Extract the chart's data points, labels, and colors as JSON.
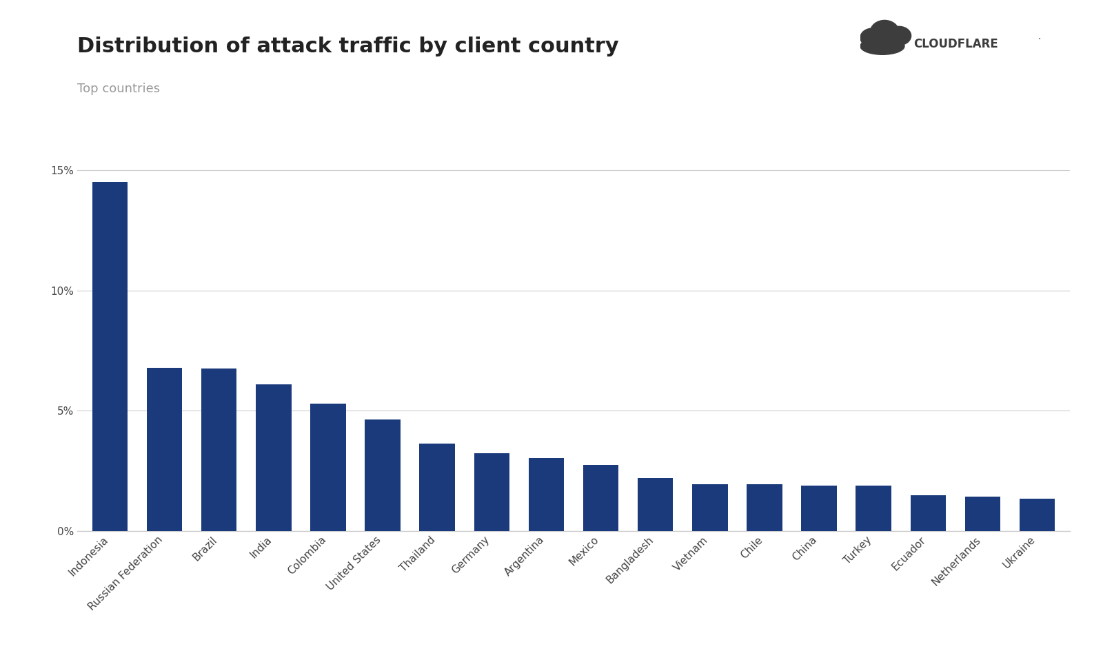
{
  "title": "Distribution of attack traffic by client country",
  "subtitle": "Top countries",
  "categories": [
    "Indonesia",
    "Russian Federation",
    "Brazil",
    "India",
    "Colombia",
    "United States",
    "Thailand",
    "Germany",
    "Argentina",
    "Mexico",
    "Bangladesh",
    "Vietnam",
    "Chile",
    "China",
    "Turkey",
    "Ecuador",
    "Netherlands",
    "Ukraine"
  ],
  "values": [
    14.5,
    6.8,
    6.75,
    6.1,
    5.3,
    4.65,
    3.65,
    3.25,
    3.05,
    2.75,
    2.2,
    1.95,
    1.95,
    1.9,
    1.9,
    1.5,
    1.45,
    1.35
  ],
  "bar_color": "#1a3a7c",
  "background_color": "#ffffff",
  "title_fontsize": 22,
  "subtitle_fontsize": 13,
  "subtitle_color": "#999999",
  "tick_fontsize": 11,
  "ylim": [
    0,
    0.16
  ],
  "yticks": [
    0,
    0.05,
    0.1,
    0.15
  ],
  "ytick_labels": [
    "0%",
    "5%",
    "10%",
    "15%"
  ],
  "grid_color": "#cccccc",
  "axis_color": "#cccccc",
  "logo_text": "CLOUDFLARE",
  "logo_text_color": "#3d3d3d",
  "cloud_color": "#3d3d3d"
}
